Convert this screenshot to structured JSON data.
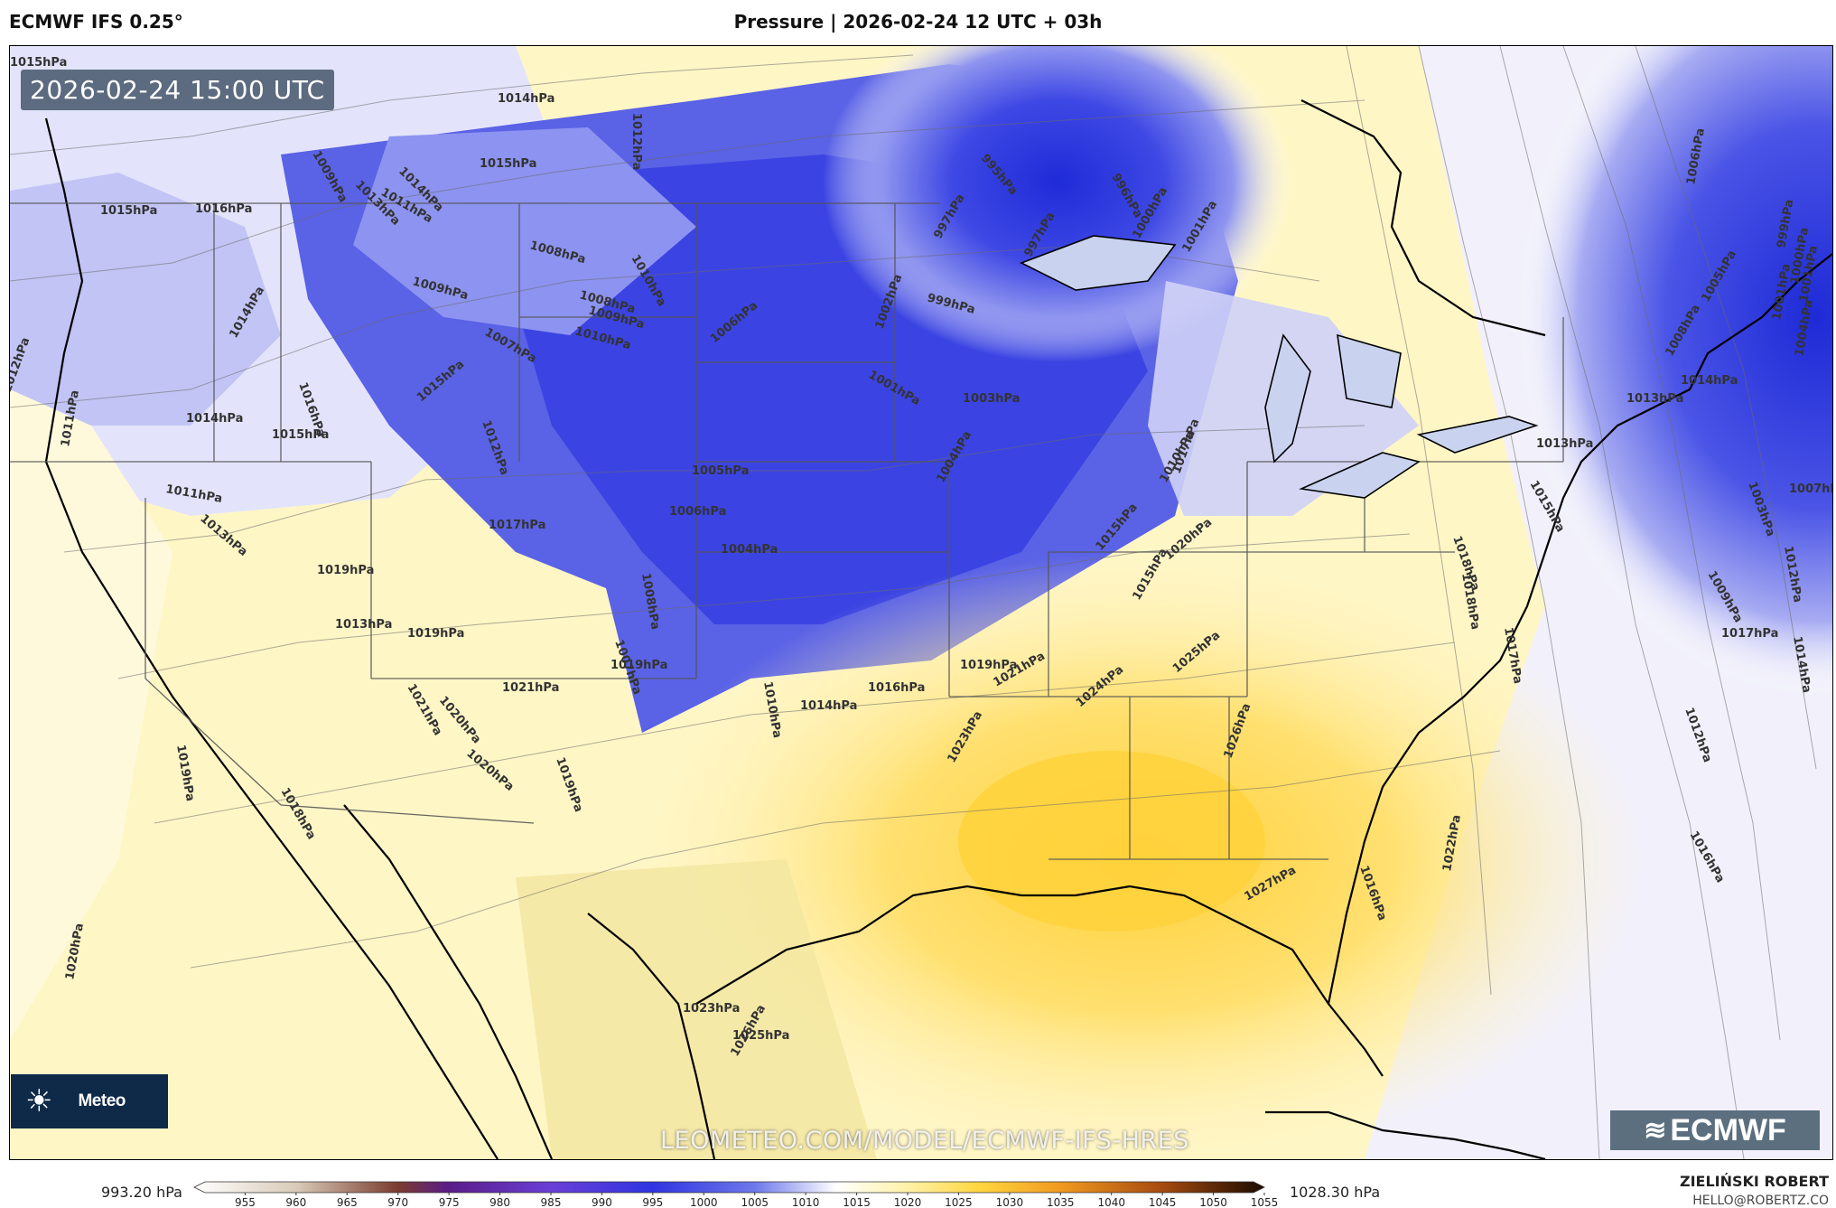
{
  "header": {
    "model": "ECMWF IFS 0.25°",
    "title": "Pressure | 2026-02-24 12 UTC + 03h"
  },
  "map": {
    "valid_time": "2026-02-24 15:00 UTC",
    "badge_text": "Meteo",
    "watermark": "LEOMETEO.COM/MODEL/ECMWF-IFS-HRES",
    "ecmwf_logo": "ECMWF",
    "colors": {
      "low": "#2f34e0",
      "mid_low": "#8d92f0",
      "neutral": "#ffffff",
      "mid_high": "#fff2a8",
      "high": "#ffd640"
    },
    "isobar_labels": [
      "1015hPa",
      "1014hPa",
      "1012hPa",
      "1015hPa",
      "1009hPa",
      "1013hPa",
      "1011hPa",
      "1014hPa",
      "1016hPa",
      "1015hPa",
      "995hPa",
      "996hPa",
      "997hPa",
      "997hPa",
      "1000hPa",
      "1001hPa",
      "1008hPa",
      "1010hPa",
      "1009hPa",
      "1008hPa",
      "1009hPa",
      "1010hPa",
      "1007hPa",
      "1002hPa",
      "999hPa",
      "1014hPa",
      "1016hPa",
      "1015hPa",
      "1014hPa",
      "1006hPa",
      "1001hPa",
      "1003hPa",
      "1012hPa",
      "1011hPa",
      "1015hPa",
      "1012hPa",
      "1005hPa",
      "1004hPa",
      "1011hPa",
      "1013hPa",
      "1013hPa",
      "1017hPa",
      "1006hPa",
      "1004hPa",
      "1015hPa",
      "1020hPa",
      "1017hPa",
      "1018hPa",
      "1015hPa",
      "1021hPa",
      "1019hPa",
      "1008hPa",
      "1007hPa",
      "1013hPa",
      "1021hPa",
      "1020hPa",
      "1019hPa",
      "1019hPa",
      "1020hPa",
      "1019hPa",
      "1010hPa",
      "1014hPa",
      "1016hPa",
      "1019hPa",
      "1021hPa",
      "1024hPa",
      "1025hPa",
      "1017hPa",
      "1019hPa",
      "1017hPa",
      "1018hPa",
      "1023hPa",
      "1026hPa",
      "1012hPa",
      "1022hPa",
      "1016hPa",
      "1016hPa",
      "1027hPa",
      "1018hPa",
      "1020hPa",
      "1023hPa",
      "1025hPa",
      "1026hPa",
      "1015hPa",
      "1010hPa",
      "1014hPa",
      "1008hPa",
      "1006hPa",
      "1005hPa",
      "1003hPa",
      "1007hPa",
      "1009hPa",
      "1014hPa",
      "1004hPa",
      "1001hPa",
      "1001hPa",
      "1000hPa",
      "999hPa",
      "1013hPa",
      "1012hPa"
    ]
  },
  "colorbar": {
    "min_label": "993.20 hPa",
    "max_label": "1028.30 hPa",
    "ticks": [
      "955",
      "960",
      "965",
      "970",
      "975",
      "980",
      "985",
      "990",
      "995",
      "1000",
      "1005",
      "1010",
      "1015",
      "1020",
      "1025",
      "1030",
      "1035",
      "1040",
      "1045",
      "1050",
      "1055"
    ],
    "stops": [
      {
        "value": 950,
        "color": "#ffffff"
      },
      {
        "value": 960,
        "color": "#d9cbb8"
      },
      {
        "value": 970,
        "color": "#7a3b2e"
      },
      {
        "value": 975,
        "color": "#5a1c88"
      },
      {
        "value": 985,
        "color": "#6a3fd6"
      },
      {
        "value": 995,
        "color": "#2f34e0"
      },
      {
        "value": 1005,
        "color": "#6e78ea"
      },
      {
        "value": 1013,
        "color": "#ffffff"
      },
      {
        "value": 1020,
        "color": "#fff2a8"
      },
      {
        "value": 1027,
        "color": "#ffd640"
      },
      {
        "value": 1035,
        "color": "#f09a20"
      },
      {
        "value": 1045,
        "color": "#a64a10"
      },
      {
        "value": 1055,
        "color": "#1a0a00"
      }
    ]
  },
  "footer": {
    "author": "ZIELIŃSKI ROBERT",
    "email": "HELLO@ROBERTZ.CO"
  }
}
